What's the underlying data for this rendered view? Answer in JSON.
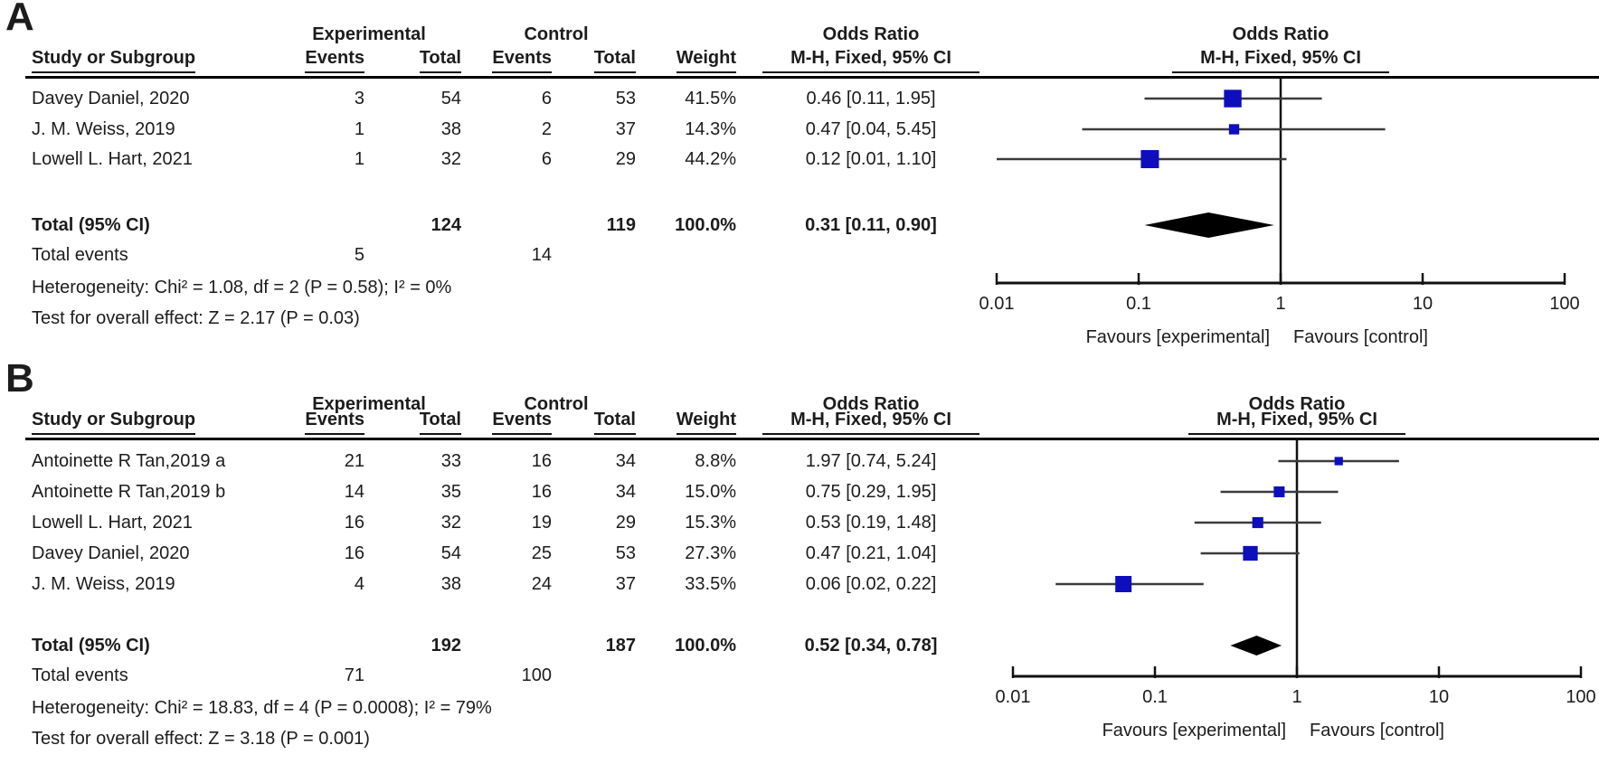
{
  "headers": {
    "study": "Study or Subgroup",
    "group_exp": "Experimental",
    "group_ctrl": "Control",
    "events": "Events",
    "total": "Total",
    "weight": "Weight",
    "or_title": "Odds Ratio",
    "or_method": "M-H, Fixed, 95% CI"
  },
  "labels": {
    "total_ci": "Total (95% CI)",
    "total_events": "Total events"
  },
  "colors": {
    "square_blue": "#0E0EBE",
    "diamond_black": "#000000",
    "ci_line": "#3B3B3B",
    "axis_black": "#111111",
    "text": "#1C1C1C"
  },
  "panels": [
    {
      "label": "A",
      "rows": [
        {
          "study": "Davey Daniel, 2020",
          "exp_events": "3",
          "exp_total": "54",
          "ctrl_events": "6",
          "ctrl_total": "53",
          "weight": "41.5%",
          "or_ci": "0.46 [0.11, 1.95]"
        },
        {
          "study": "J. M. Weiss, 2019",
          "exp_events": "1",
          "exp_total": "38",
          "ctrl_events": "2",
          "ctrl_total": "37",
          "weight": "14.3%",
          "or_ci": "0.47 [0.04, 5.45]"
        },
        {
          "study": "Lowell L. Hart, 2021",
          "exp_events": "1",
          "exp_total": "32",
          "ctrl_events": "6",
          "ctrl_total": "29",
          "weight": "44.2%",
          "or_ci": "0.12 [0.01, 1.10]"
        }
      ],
      "total": {
        "exp_total": "124",
        "ctrl_total": "119",
        "weight": "100.0%",
        "or_ci": "0.31 [0.11, 0.90]"
      },
      "total_events": {
        "exp": "5",
        "ctrl": "14"
      },
      "heterogeneity": "Heterogeneity: Chi² = 1.08, df = 2 (P = 0.58); I² = 0%",
      "overall_effect": "Test for overall effect: Z = 2.17 (P = 0.03)"
    },
    {
      "label": "B",
      "rows": [
        {
          "study": "Antoinette R Tan,2019 a",
          "exp_events": "21",
          "exp_total": "33",
          "ctrl_events": "16",
          "ctrl_total": "34",
          "weight": "8.8%",
          "or_ci": "1.97 [0.74, 5.24]"
        },
        {
          "study": "Antoinette R Tan,2019 b",
          "exp_events": "14",
          "exp_total": "35",
          "ctrl_events": "16",
          "ctrl_total": "34",
          "weight": "15.0%",
          "or_ci": "0.75 [0.29, 1.95]"
        },
        {
          "study": "Lowell L. Hart, 2021",
          "exp_events": "16",
          "exp_total": "32",
          "ctrl_events": "19",
          "ctrl_total": "29",
          "weight": "15.3%",
          "or_ci": "0.53 [0.19, 1.48]"
        },
        {
          "study": "Davey Daniel, 2020",
          "exp_events": "16",
          "exp_total": "54",
          "ctrl_events": "25",
          "ctrl_total": "53",
          "weight": "27.3%",
          "or_ci": "0.47 [0.21, 1.04]"
        },
        {
          "study": "J. M. Weiss, 2019",
          "exp_events": "4",
          "exp_total": "38",
          "ctrl_events": "24",
          "ctrl_total": "37",
          "weight": "33.5%",
          "or_ci": "0.06 [0.02, 0.22]"
        }
      ],
      "total": {
        "exp_total": "192",
        "ctrl_total": "187",
        "weight": "100.0%",
        "or_ci": "0.52 [0.34, 0.78]"
      },
      "total_events": {
        "exp": "71",
        "ctrl": "100"
      },
      "heterogeneity": "Heterogeneity: Chi² = 18.83, df = 4 (P = 0.0008); I² = 79%",
      "overall_effect": "Test for overall effect: Z = 3.18 (P = 0.001)"
    }
  ],
  "chart_data": [
    {
      "type": "forest",
      "panel": "A",
      "effect_measure": "Odds Ratio",
      "method": "M-H, Fixed, 95% CI",
      "x_scale": "log10",
      "x_ticks": [
        0.01,
        0.1,
        1,
        10,
        100
      ],
      "x_tick_labels": [
        "0.01",
        "0.1",
        "1",
        "10",
        "100"
      ],
      "null_value": 1,
      "favours_left": "Favours [experimental]",
      "favours_right": "Favours [control]",
      "studies": [
        {
          "name": "Davey Daniel, 2020",
          "or": 0.46,
          "ci_low": 0.11,
          "ci_high": 1.95,
          "weight_pct": 41.5
        },
        {
          "name": "J. M. Weiss, 2019",
          "or": 0.47,
          "ci_low": 0.04,
          "ci_high": 5.45,
          "weight_pct": 14.3
        },
        {
          "name": "Lowell L. Hart, 2021",
          "or": 0.12,
          "ci_low": 0.01,
          "ci_high": 1.1,
          "weight_pct": 44.2
        }
      ],
      "total": {
        "or": 0.31,
        "ci_low": 0.11,
        "ci_high": 0.9,
        "weight_pct": 100.0
      }
    },
    {
      "type": "forest",
      "panel": "B",
      "effect_measure": "Odds Ratio",
      "method": "M-H, Fixed, 95% CI",
      "x_scale": "log10",
      "x_ticks": [
        0.01,
        0.1,
        1,
        10,
        100
      ],
      "x_tick_labels": [
        "0.01",
        "0.1",
        "1",
        "10",
        "100"
      ],
      "null_value": 1,
      "favours_left": "Favours [experimental]",
      "favours_right": "Favours [control]",
      "studies": [
        {
          "name": "Antoinette R Tan,2019 a",
          "or": 1.97,
          "ci_low": 0.74,
          "ci_high": 5.24,
          "weight_pct": 8.8
        },
        {
          "name": "Antoinette R Tan,2019 b",
          "or": 0.75,
          "ci_low": 0.29,
          "ci_high": 1.95,
          "weight_pct": 15.0
        },
        {
          "name": "Lowell L. Hart, 2021",
          "or": 0.53,
          "ci_low": 0.19,
          "ci_high": 1.48,
          "weight_pct": 15.3
        },
        {
          "name": "Davey Daniel, 2020",
          "or": 0.47,
          "ci_low": 0.21,
          "ci_high": 1.04,
          "weight_pct": 27.3
        },
        {
          "name": "J. M. Weiss, 2019",
          "or": 0.06,
          "ci_low": 0.02,
          "ci_high": 0.22,
          "weight_pct": 33.5
        }
      ],
      "total": {
        "or": 0.52,
        "ci_low": 0.34,
        "ci_high": 0.78,
        "weight_pct": 100.0
      }
    }
  ]
}
